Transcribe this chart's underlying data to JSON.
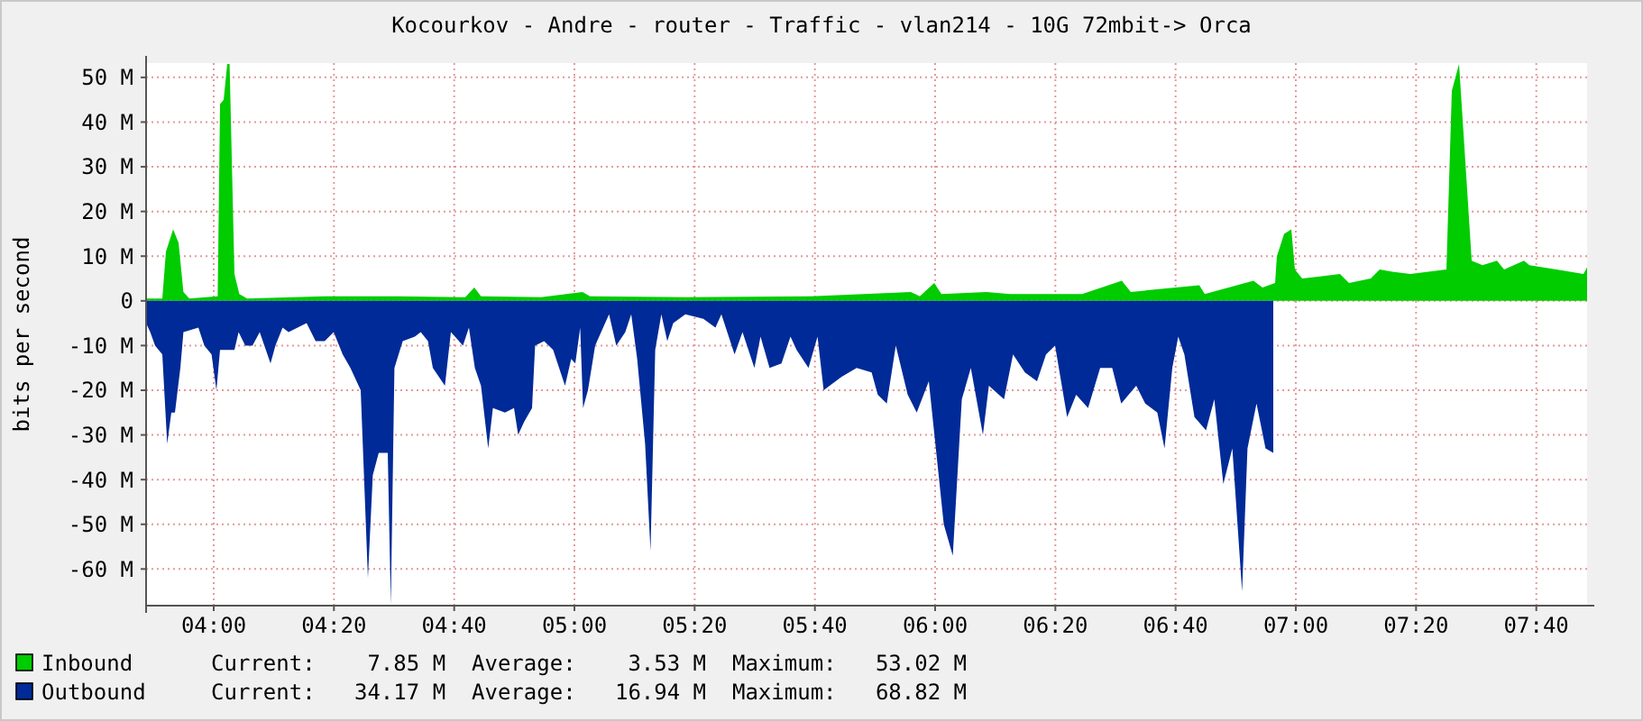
{
  "chart_data": {
    "type": "area",
    "title": "Kocourkov - Andre - router - Traffic - vlan214 - 10G 72mbit-> Orca",
    "ylabel": "bits per second",
    "xlim": [
      3.8125,
      7.8075
    ],
    "xticks": [
      {
        "value": 4,
        "label": "04:00"
      },
      {
        "value": 4.3333,
        "label": "04:20"
      },
      {
        "value": 4.6667,
        "label": "04:40"
      },
      {
        "value": 5,
        "label": "05:00"
      },
      {
        "value": 5.3333,
        "label": "05:20"
      },
      {
        "value": 5.6667,
        "label": "05:40"
      },
      {
        "value": 6,
        "label": "06:00"
      },
      {
        "value": 6.3333,
        "label": "06:20"
      },
      {
        "value": 6.6667,
        "label": "06:40"
      },
      {
        "value": 7,
        "label": "07:00"
      },
      {
        "value": 7.3333,
        "label": "07:20"
      },
      {
        "value": 7.6667,
        "label": "07:40"
      }
    ],
    "ylim": [
      -68.2,
      53.2
    ],
    "yticks": [
      {
        "value": -60,
        "label": "-60 M"
      },
      {
        "value": -50,
        "label": "-50 M"
      },
      {
        "value": -40,
        "label": "-40 M"
      },
      {
        "value": -30,
        "label": "-30 M"
      },
      {
        "value": -20,
        "label": "-20 M"
      },
      {
        "value": -10,
        "label": "-10 M"
      },
      0,
      {
        "value": 10,
        "label": "10 M"
      },
      {
        "value": 20,
        "label": "20 M"
      },
      {
        "value": 30,
        "label": "30 M"
      },
      {
        "value": 40,
        "label": "40 M"
      },
      {
        "value": 50,
        "label": "50 M"
      }
    ],
    "grid": true,
    "legend": "bottom",
    "series": [
      {
        "name": "Inbound",
        "color": "#00cc00",
        "x": [
          3.8125,
          3.8575,
          3.8675,
          3.8875,
          3.9025,
          3.916,
          3.9325,
          4.011,
          4.0175,
          4.0275,
          4.0375,
          4.044,
          4.0575,
          4.071,
          4.0925,
          4.3075,
          4.5075,
          4.6975,
          4.7225,
          4.741,
          4.9075,
          5.0225,
          5.043,
          5.3075,
          5.6575,
          5.9325,
          5.9575,
          5.9975,
          6.0175,
          6.1425,
          6.2075,
          6.4075,
          6.5175,
          6.5425,
          6.7325,
          6.7475,
          6.8825,
          6.9075,
          6.9425,
          6.9475,
          6.9675,
          6.9875,
          6.9975,
          7.0175,
          7.0725,
          7.1225,
          7.1475,
          7.2075,
          7.2325,
          7.2675,
          7.3175,
          7.4175,
          7.4325,
          7.4525,
          7.4725,
          7.4875,
          7.5175,
          7.5575,
          7.5775,
          7.6325,
          7.6475,
          7.7225,
          7.7975,
          7.8075
        ],
        "values": [
          0.5,
          0.5,
          11,
          16,
          13,
          2,
          0.5,
          1,
          44,
          45,
          53,
          53,
          6,
          1.5,
          0.5,
          1,
          1,
          0.8,
          3,
          1,
          0.8,
          2,
          1,
          0.8,
          1,
          2,
          1,
          4,
          1.5,
          2,
          1.5,
          1.5,
          4.5,
          2,
          3.5,
          1.5,
          4.5,
          3,
          4,
          10,
          15,
          16,
          7,
          5,
          5.5,
          6,
          4,
          5,
          7,
          6.5,
          6,
          7,
          47,
          53,
          28,
          9,
          8,
          9,
          7,
          9,
          8,
          7,
          6,
          7.5
        ]
      },
      {
        "name": "Outbound",
        "color": "#002a97",
        "x": [
          3.8125,
          3.824,
          3.8375,
          3.8575,
          3.871,
          3.8825,
          3.8925,
          3.9075,
          3.916,
          3.9575,
          3.974,
          3.994,
          4.0075,
          4.0175,
          4.0575,
          4.069,
          4.0875,
          4.1075,
          4.1275,
          4.1575,
          4.171,
          4.191,
          4.2075,
          4.2575,
          4.2825,
          4.3075,
          4.3325,
          4.3575,
          4.379,
          4.4075,
          4.4275,
          4.441,
          4.4575,
          4.4825,
          4.491,
          4.501,
          4.524,
          4.5575,
          4.574,
          4.594,
          4.6075,
          4.641,
          4.6575,
          4.691,
          4.7075,
          4.724,
          4.741,
          4.761,
          4.774,
          4.8075,
          4.8325,
          4.844,
          4.861,
          4.8825,
          4.891,
          4.916,
          4.941,
          4.974,
          4.991,
          5.0025,
          5.016,
          5.024,
          5.0375,
          5.0575,
          5.074,
          5.096,
          5.116,
          5.141,
          5.1575,
          5.174,
          5.196,
          5.211,
          5.224,
          5.241,
          5.2575,
          5.274,
          5.3075,
          5.3575,
          5.391,
          5.4075,
          5.444,
          5.466,
          5.499,
          5.516,
          5.541,
          5.574,
          5.599,
          5.616,
          5.649,
          5.674,
          5.691,
          5.7075,
          5.741,
          5.7825,
          5.824,
          5.841,
          5.866,
          5.891,
          5.924,
          5.949,
          5.9825,
          6.024,
          6.049,
          6.074,
          6.099,
          6.1325,
          6.149,
          6.191,
          6.216,
          6.249,
          6.2825,
          6.3075,
          6.3325,
          6.366,
          6.391,
          6.424,
          6.4575,
          6.491,
          6.516,
          6.5575,
          6.5825,
          6.616,
          6.636,
          6.6575,
          6.674,
          6.691,
          6.719,
          6.751,
          6.774,
          6.799,
          6.824,
          6.851,
          6.866,
          6.891,
          6.916,
          6.9375
        ],
        "values": [
          -5,
          -7,
          -10,
          -12,
          -32,
          -25,
          -25,
          -15,
          -7,
          -6,
          -10,
          -12,
          -20,
          -11,
          -11,
          -7,
          -10,
          -10,
          -7,
          -14,
          -10,
          -6,
          -7,
          -5,
          -9,
          -9,
          -7,
          -12,
          -15,
          -20,
          -62,
          -39,
          -34,
          -34,
          -68,
          -15,
          -9,
          -8,
          -7,
          -9,
          -15,
          -19,
          -7,
          -10,
          -6,
          -15,
          -19,
          -33,
          -24,
          -25,
          -24,
          -30,
          -27,
          -24,
          -10,
          -9,
          -11,
          -19,
          -13,
          -14,
          -6,
          -24,
          -20,
          -10,
          -7,
          -3,
          -10,
          -7,
          -3,
          -13,
          -32,
          -56,
          -11,
          -3,
          -9,
          -5,
          -3,
          -4,
          -6,
          -3,
          -12,
          -7,
          -15,
          -8,
          -15,
          -14,
          -8,
          -11,
          -15,
          -8,
          -20,
          -19,
          -17,
          -15,
          -16,
          -21,
          -23,
          -10,
          -21,
          -25,
          -18,
          -50,
          -57,
          -22,
          -15,
          -30,
          -19,
          -22,
          -12,
          -16,
          -18,
          -12,
          -10,
          -26,
          -21,
          -24,
          -15,
          -15,
          -23,
          -19,
          -23,
          -25,
          -33,
          -15,
          -8,
          -12,
          -26,
          -29,
          -22,
          -41,
          -33,
          -65,
          -33,
          -23,
          -33,
          -34
        ]
      }
    ],
    "annotations": [
      "Current:    7.85 M  Average:    3.53 M  Maximum:   53.02 M",
      "Current:   34.17 M  Average:   16.94 M  Maximum:   68.82 M"
    ]
  }
}
